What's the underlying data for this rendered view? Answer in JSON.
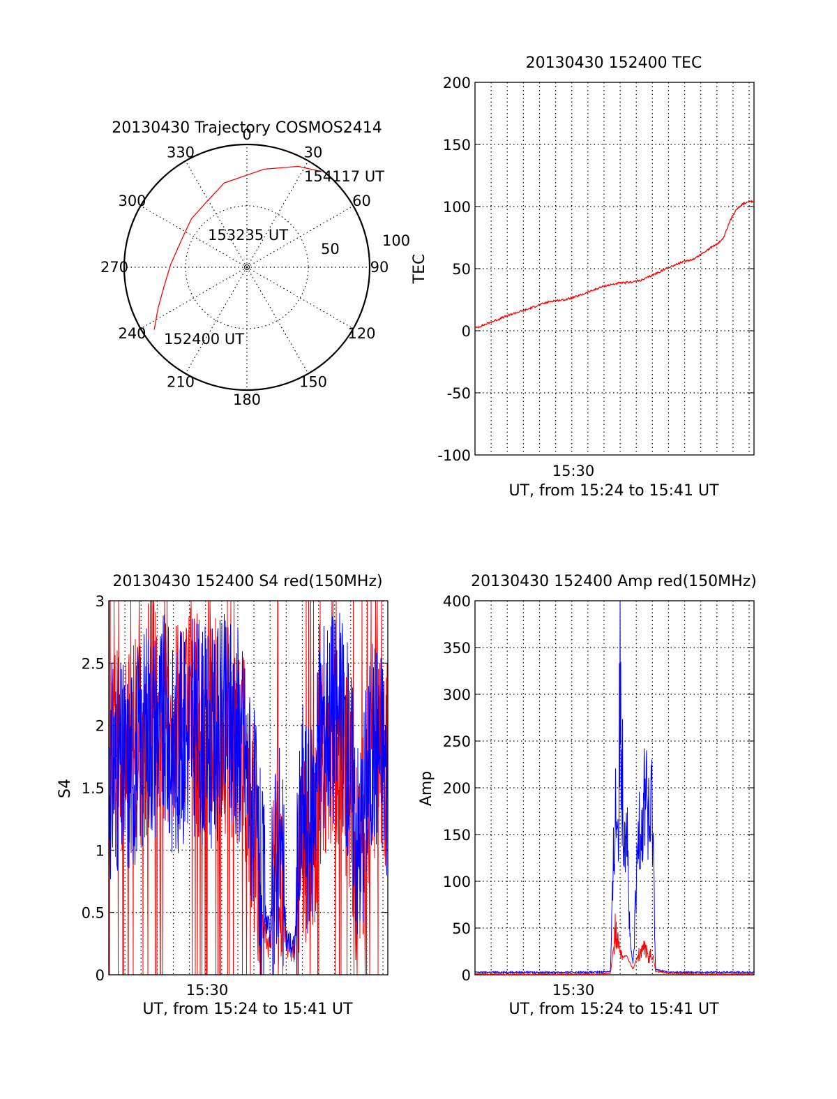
{
  "colors": {
    "red": "#ff0000",
    "blue": "#0000ff",
    "axis": "#000000"
  },
  "chart_data": [
    {
      "type": "polar",
      "title": "20130430 Trajectory COSMOS2414",
      "azimuth_labels": [
        "0",
        "30",
        "60",
        "90",
        "120",
        "150",
        "180",
        "210",
        "240",
        "270",
        "300",
        "330"
      ],
      "elevation_ring_labels": [
        "50",
        "100"
      ],
      "track": [
        {
          "azimuth": 236,
          "zenith_distance": 82
        },
        {
          "azimuth": 245,
          "zenith_distance": 72
        },
        {
          "azimuth": 256,
          "zenith_distance": 63
        },
        {
          "azimuth": 272,
          "zenith_distance": 56
        },
        {
          "azimuth": 292,
          "zenith_distance": 52
        },
        {
          "azimuth": 311,
          "zenith_distance": 54
        },
        {
          "azimuth": 327,
          "zenith_distance": 56
        },
        {
          "azimuth": 345,
          "zenith_distance": 64
        },
        {
          "azimuth": 10,
          "zenith_distance": 73
        },
        {
          "azimuth": 27,
          "zenith_distance": 83
        },
        {
          "azimuth": 38,
          "zenith_distance": 89
        }
      ],
      "time_labels": [
        "154117 UT",
        "153235 UT",
        "152400 UT"
      ],
      "series": [
        {
          "color": "red"
        }
      ]
    },
    {
      "type": "line",
      "title": "20130430 152400 TEC",
      "ylabel": "TEC",
      "xlabel": "UT, from 15:24 to 15:41 UT",
      "xlim": [
        0,
        17.3
      ],
      "ylim": [
        -100,
        200
      ],
      "yticks": [
        "-100",
        "-50",
        "0",
        "50",
        "100",
        "150",
        "200"
      ],
      "xtick_label": "15:30",
      "grid": true,
      "x": [
        0,
        0.8,
        1.6,
        2.4,
        3.2,
        4.0,
        4.8,
        5.6,
        6.4,
        7.2,
        8.0,
        8.8,
        9.6,
        10.4,
        11.2,
        12.0,
        12.8,
        13.6,
        14.4,
        15.0,
        15.4,
        15.8,
        16.2,
        16.6,
        17.0,
        17.3
      ],
      "series": [
        {
          "color": "red",
          "values": [
            2,
            6,
            10,
            14,
            17,
            21,
            24,
            25,
            28,
            32,
            36,
            38,
            39,
            41,
            46,
            51,
            55,
            58,
            65,
            70,
            74,
            88,
            98,
            102,
            104,
            104
          ]
        }
      ]
    },
    {
      "type": "line",
      "title": "20130430 152400 S4 red(150MHz)",
      "ylabel": "S4",
      "xlabel": "UT, from 15:24 to 15:41 UT",
      "xlim": [
        0,
        17.3
      ],
      "ylim": [
        0,
        3
      ],
      "yticks": [
        "0",
        "0.5",
        "1",
        "1.5",
        "2",
        "2.5",
        "3"
      ],
      "xtick_label": "15:30",
      "grid": true,
      "x": [
        0,
        0.5,
        1,
        1.5,
        2,
        2.5,
        3,
        3.5,
        4,
        4.5,
        5,
        5.5,
        6,
        6.5,
        7,
        7.5,
        8,
        8.5,
        9,
        9.5,
        10,
        10.5,
        11,
        11.5,
        12,
        12.5,
        13,
        13.5,
        14,
        14.5,
        15,
        15.5,
        16,
        16.5,
        17,
        17.3
      ],
      "series": [
        {
          "color": "blue",
          "values": [
            1.6,
            1.7,
            1.6,
            1.7,
            1.9,
            2.0,
            2.0,
            2.0,
            1.8,
            1.9,
            2.0,
            2.0,
            1.9,
            1.9,
            2.0,
            2.0,
            2.0,
            1.7,
            1.3,
            0.6,
            0.3,
            1.2,
            0.3,
            0.2,
            1.4,
            1.1,
            1.9,
            2.1,
            2.1,
            2.0,
            1.7,
            1.0,
            1.6,
            1.9,
            1.8,
            1.6
          ]
        },
        {
          "color": "red",
          "values": [
            1.5,
            1.8,
            1.9,
            1.8,
            1.8,
            2.2,
            2.1,
            2.0,
            1.9,
            2.0,
            2.1,
            2.0,
            2.0,
            2.0,
            2.0,
            1.9,
            1.8,
            1.6,
            1.1,
            0.4,
            0.2,
            1.0,
            0.2,
            0.2,
            1.1,
            0.9,
            1.6,
            1.9,
            2.0,
            1.8,
            1.5,
            0.6,
            1.5,
            1.8,
            1.7,
            1.6
          ]
        }
      ]
    },
    {
      "type": "line",
      "title": "20130430 152400 Amp red(150MHz)",
      "ylabel": "Amp",
      "xlabel": "UT, from 15:24 to 15:41 UT",
      "xlim": [
        0,
        17.3
      ],
      "ylim": [
        0,
        400
      ],
      "yticks": [
        "0",
        "50",
        "100",
        "150",
        "200",
        "250",
        "300",
        "350",
        "400"
      ],
      "xtick_label": "15:30",
      "grid": true,
      "x": [
        0,
        2,
        4,
        6,
        7.5,
        8.4,
        8.6,
        8.7,
        8.9,
        9.0,
        9.2,
        9.4,
        9.6,
        9.8,
        10.0,
        10.2,
        10.4,
        10.6,
        10.8,
        11.0,
        11.2,
        12,
        14,
        17.3
      ],
      "series": [
        {
          "color": "blue",
          "values": [
            2,
            2,
            2,
            2,
            2,
            3,
            140,
            200,
            180,
            350,
            190,
            200,
            40,
            10,
            100,
            200,
            180,
            240,
            160,
            210,
            5,
            2,
            2,
            2
          ]
        },
        {
          "color": "red",
          "values": [
            0,
            0,
            0,
            0,
            0,
            1,
            30,
            55,
            35,
            25,
            18,
            20,
            12,
            5,
            15,
            25,
            30,
            28,
            22,
            25,
            3,
            1,
            0,
            0
          ]
        }
      ]
    }
  ]
}
